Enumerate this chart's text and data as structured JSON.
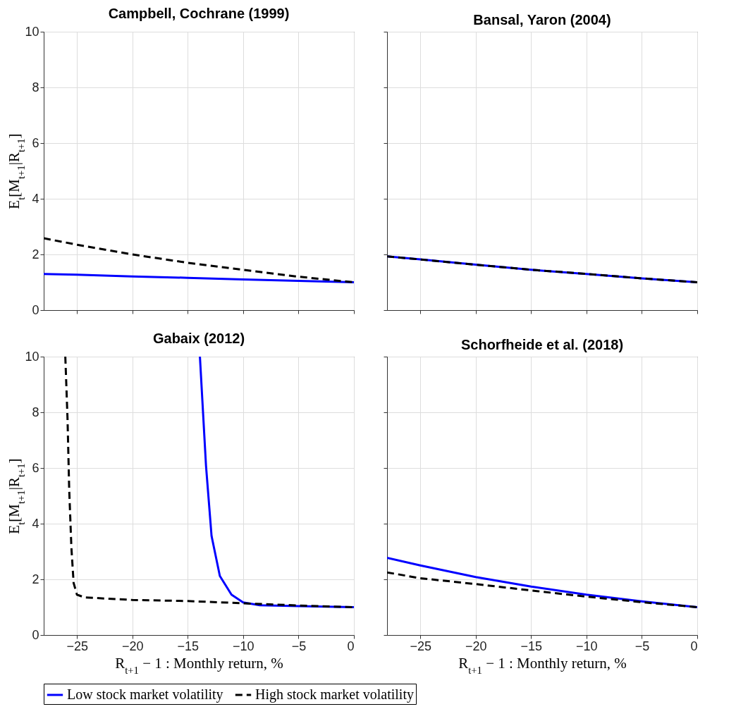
{
  "chart_data": [
    {
      "type": "line",
      "title": "Campbell, Cochrane (1999)",
      "ylabel": "E$_{t}$[M$_{t+1}$|R$_{t+1}$]",
      "xlim": [
        -28,
        0
      ],
      "ylim": [
        0,
        10
      ],
      "xticks": [
        -25,
        -20,
        -15,
        -10,
        -5,
        0
      ],
      "yticks": [
        0,
        2,
        4,
        6,
        8,
        10
      ],
      "grid": true,
      "tick_labels": "y",
      "legend": "bottom",
      "series": [
        {
          "name": "Low stock market volatility",
          "color": "#0000ff",
          "line_style": "solid",
          "x": [
            -28,
            -25,
            -20,
            -15,
            -10,
            -5,
            0
          ],
          "values": [
            1.3,
            1.27,
            1.21,
            1.16,
            1.1,
            1.05,
            1.0
          ]
        },
        {
          "name": "High stock market volatility",
          "color": "#000000",
          "line_style": "dashed",
          "x": [
            -28,
            -25,
            -20,
            -15,
            -10,
            -5,
            0
          ],
          "values": [
            2.58,
            2.35,
            2.0,
            1.7,
            1.45,
            1.2,
            1.0
          ]
        }
      ]
    },
    {
      "type": "line",
      "title": "Bansal, Yaron (2004)",
      "xlim": [
        -28,
        0
      ],
      "ylim": [
        0,
        10
      ],
      "xticks": [
        -25,
        -20,
        -15,
        -10,
        -5,
        0
      ],
      "yticks": [
        0,
        2,
        4,
        6,
        8,
        10
      ],
      "grid": true,
      "tick_labels": false,
      "legend": "bottom",
      "series": [
        {
          "name": "Low stock market volatility",
          "color": "#0000ff",
          "line_style": "solid",
          "x": [
            -28,
            -25,
            -20,
            -15,
            -10,
            -5,
            0
          ],
          "values": [
            1.93,
            1.82,
            1.63,
            1.45,
            1.3,
            1.14,
            1.0
          ]
        },
        {
          "name": "High stock market volatility",
          "color": "#000000",
          "line_style": "dashed",
          "x": [
            -28,
            -25,
            -20,
            -15,
            -10,
            -5,
            0
          ],
          "values": [
            1.93,
            1.82,
            1.63,
            1.45,
            1.3,
            1.14,
            1.0
          ]
        }
      ]
    },
    {
      "type": "line",
      "title": "Gabaix (2012)",
      "xlabel": "R$_{t+1}$ − 1 :  Monthly return, %",
      "ylabel": "E$_{t}$[M$_{t+1}$|R$_{t+1}$]",
      "xlim": [
        -28,
        0
      ],
      "ylim": [
        0,
        10
      ],
      "xticks": [
        -25,
        -20,
        -15,
        -10,
        -5,
        0
      ],
      "yticks": [
        0,
        2,
        4,
        6,
        8,
        10
      ],
      "grid": true,
      "legend": "bottom",
      "series": [
        {
          "name": "Low stock market volatility",
          "color": "#0000ff",
          "line_style": "solid",
          "x": [
            -13.9,
            -13.35,
            -12.85,
            -12.1,
            -11.05,
            -10,
            -8.5,
            -5,
            0
          ],
          "values": [
            10,
            6.08,
            3.56,
            2.12,
            1.45,
            1.17,
            1.07,
            1.04,
            1.0
          ]
        },
        {
          "name": "High stock market volatility",
          "color": "#000000",
          "line_style": "dashed",
          "x": [
            -26.05,
            -25.85,
            -25.7,
            -25.5,
            -25.3,
            -25,
            -24.3,
            -20,
            -15,
            -10,
            -5,
            0
          ],
          "values": [
            10,
            7.77,
            5.24,
            3.13,
            1.87,
            1.45,
            1.35,
            1.26,
            1.22,
            1.14,
            1.06,
            1.0
          ]
        }
      ]
    },
    {
      "type": "line",
      "title": "Schorfheide et al. (2018)",
      "xlabel": "R$_{t+1}$ − 1 :  Monthly return, %",
      "xlim": [
        -28,
        0
      ],
      "ylim": [
        0,
        10
      ],
      "xticks": [
        -25,
        -20,
        -15,
        -10,
        -5,
        0
      ],
      "yticks": [
        0,
        2,
        4,
        6,
        8,
        10
      ],
      "grid": true,
      "tick_labels": "x",
      "legend": "bottom",
      "series": [
        {
          "name": "Low stock market volatility",
          "color": "#0000ff",
          "line_style": "solid",
          "x": [
            -28,
            -25,
            -20,
            -15,
            -10,
            -5,
            0
          ],
          "values": [
            2.77,
            2.5,
            2.08,
            1.74,
            1.45,
            1.21,
            1.0
          ]
        },
        {
          "name": "High stock market volatility",
          "color": "#000000",
          "line_style": "dashed",
          "x": [
            -28,
            -25,
            -20,
            -15,
            -10,
            -5,
            0
          ],
          "values": [
            2.25,
            2.04,
            1.83,
            1.6,
            1.38,
            1.18,
            1.0
          ]
        }
      ]
    }
  ]
}
